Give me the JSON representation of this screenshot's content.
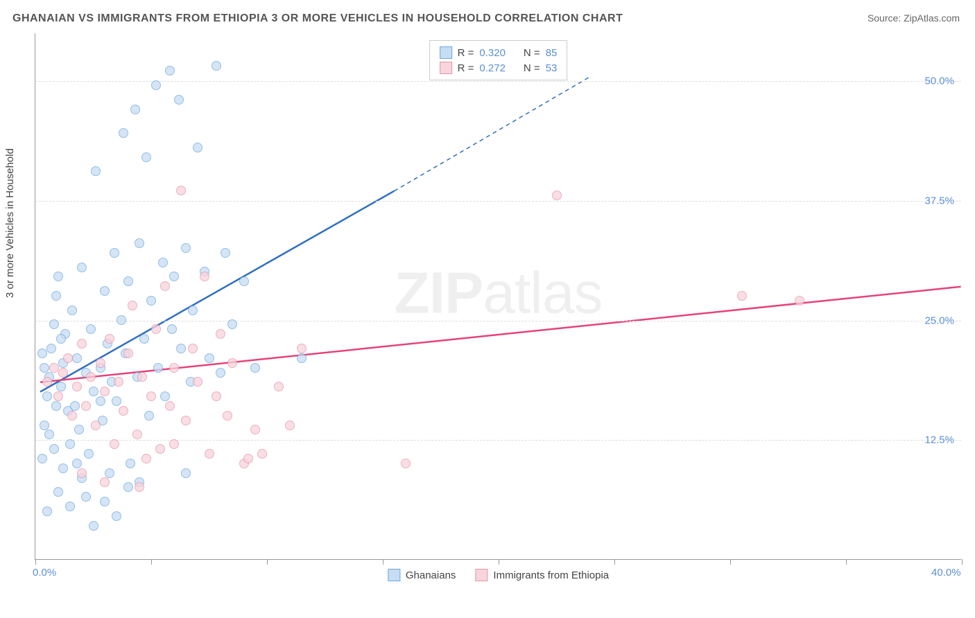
{
  "title": "GHANAIAN VS IMMIGRANTS FROM ETHIOPIA 3 OR MORE VEHICLES IN HOUSEHOLD CORRELATION CHART",
  "source_label": "Source: ZipAtlas.com",
  "ylabel": "3 or more Vehicles in Household",
  "watermark_a": "ZIP",
  "watermark_b": "atlas",
  "chart": {
    "type": "scatter",
    "xlim": [
      0,
      40
    ],
    "ylim": [
      0,
      55
    ],
    "x_tick_positions": [
      0,
      5,
      10,
      15,
      20,
      25,
      30,
      35,
      40
    ],
    "x_tick_labels": {
      "0": "0.0%",
      "40": "40.0%"
    },
    "y_grid_positions": [
      12.5,
      25.0,
      37.5,
      50.0
    ],
    "y_tick_labels": [
      "12.5%",
      "25.0%",
      "37.5%",
      "50.0%"
    ],
    "background_color": "#ffffff",
    "grid_color": "#dddddd",
    "axis_color": "#999999",
    "series": [
      {
        "name": "Ghanaians",
        "marker_fill": "#c7ddf3",
        "marker_stroke": "#6ea8e0",
        "line_color": "#2f6fc0",
        "R": "0.320",
        "N": "85",
        "trend": {
          "x1": 0.2,
          "y1": 17.5,
          "x2_solid": 15.5,
          "y2_solid": 38.5,
          "x2_dash": 24.0,
          "y2_dash": 50.5
        },
        "points": [
          [
            0.3,
            10.5
          ],
          [
            0.4,
            14.0
          ],
          [
            0.5,
            17.0
          ],
          [
            0.6,
            19.0
          ],
          [
            0.7,
            22.0
          ],
          [
            0.8,
            24.5
          ],
          [
            0.9,
            27.5
          ],
          [
            1.0,
            29.5
          ],
          [
            1.1,
            18.0
          ],
          [
            1.2,
            20.5
          ],
          [
            1.3,
            23.5
          ],
          [
            1.4,
            15.5
          ],
          [
            1.5,
            12.0
          ],
          [
            1.6,
            26.0
          ],
          [
            1.7,
            16.0
          ],
          [
            1.8,
            21.0
          ],
          [
            1.9,
            13.5
          ],
          [
            2.0,
            30.5
          ],
          [
            2.2,
            19.5
          ],
          [
            2.3,
            11.0
          ],
          [
            2.4,
            24.0
          ],
          [
            2.5,
            17.5
          ],
          [
            2.6,
            40.5
          ],
          [
            2.8,
            20.0
          ],
          [
            2.9,
            14.5
          ],
          [
            3.0,
            28.0
          ],
          [
            3.1,
            22.5
          ],
          [
            3.3,
            18.5
          ],
          [
            3.4,
            32.0
          ],
          [
            3.5,
            16.5
          ],
          [
            3.7,
            25.0
          ],
          [
            3.8,
            44.5
          ],
          [
            3.9,
            21.5
          ],
          [
            4.0,
            29.0
          ],
          [
            4.1,
            10.0
          ],
          [
            4.3,
            47.0
          ],
          [
            4.4,
            19.0
          ],
          [
            4.5,
            33.0
          ],
          [
            4.7,
            23.0
          ],
          [
            4.8,
            42.0
          ],
          [
            4.9,
            15.0
          ],
          [
            5.0,
            27.0
          ],
          [
            5.2,
            49.5
          ],
          [
            5.3,
            20.0
          ],
          [
            5.5,
            31.0
          ],
          [
            5.6,
            17.0
          ],
          [
            5.8,
            51.0
          ],
          [
            5.9,
            24.0
          ],
          [
            6.0,
            29.5
          ],
          [
            6.2,
            48.0
          ],
          [
            6.3,
            22.0
          ],
          [
            6.5,
            32.5
          ],
          [
            6.7,
            18.5
          ],
          [
            6.8,
            26.0
          ],
          [
            7.0,
            43.0
          ],
          [
            7.3,
            30.0
          ],
          [
            7.5,
            21.0
          ],
          [
            7.8,
            51.5
          ],
          [
            8.0,
            19.5
          ],
          [
            8.2,
            32.0
          ],
          [
            8.5,
            24.5
          ],
          [
            9.0,
            29.0
          ],
          [
            9.5,
            20.0
          ],
          [
            11.5,
            21.0
          ],
          [
            0.5,
            5.0
          ],
          [
            1.0,
            7.0
          ],
          [
            1.5,
            5.5
          ],
          [
            2.0,
            8.5
          ],
          [
            2.5,
            3.5
          ],
          [
            3.0,
            6.0
          ],
          [
            3.5,
            4.5
          ],
          [
            4.0,
            7.5
          ],
          [
            4.5,
            8.0
          ],
          [
            1.2,
            9.5
          ],
          [
            0.8,
            11.5
          ],
          [
            1.8,
            10.0
          ],
          [
            2.2,
            6.5
          ],
          [
            0.4,
            20.0
          ],
          [
            0.6,
            13.0
          ],
          [
            0.9,
            16.0
          ],
          [
            1.1,
            23.0
          ],
          [
            6.5,
            9.0
          ],
          [
            2.8,
            16.5
          ],
          [
            3.2,
            9.0
          ],
          [
            0.3,
            21.5
          ]
        ]
      },
      {
        "name": "Immigrants from Ethiopia",
        "marker_fill": "#f8d4dc",
        "marker_stroke": "#e695aa",
        "line_color": "#e6427a",
        "R": "0.272",
        "N": "53",
        "trend": {
          "x1": 0.2,
          "y1": 18.5,
          "x2_solid": 40.0,
          "y2_solid": 28.5,
          "x2_dash": 40.0,
          "y2_dash": 28.5
        },
        "points": [
          [
            0.5,
            18.5
          ],
          [
            0.8,
            20.0
          ],
          [
            1.0,
            17.0
          ],
          [
            1.2,
            19.5
          ],
          [
            1.4,
            21.0
          ],
          [
            1.6,
            15.0
          ],
          [
            1.8,
            18.0
          ],
          [
            2.0,
            22.5
          ],
          [
            2.2,
            16.0
          ],
          [
            2.4,
            19.0
          ],
          [
            2.6,
            14.0
          ],
          [
            2.8,
            20.5
          ],
          [
            3.0,
            17.5
          ],
          [
            3.2,
            23.0
          ],
          [
            3.4,
            12.0
          ],
          [
            3.6,
            18.5
          ],
          [
            3.8,
            15.5
          ],
          [
            4.0,
            21.5
          ],
          [
            4.2,
            26.5
          ],
          [
            4.4,
            13.0
          ],
          [
            4.6,
            19.0
          ],
          [
            4.8,
            10.5
          ],
          [
            5.0,
            17.0
          ],
          [
            5.2,
            24.0
          ],
          [
            5.4,
            11.5
          ],
          [
            5.6,
            28.5
          ],
          [
            5.8,
            16.0
          ],
          [
            6.0,
            20.0
          ],
          [
            6.3,
            38.5
          ],
          [
            6.5,
            14.5
          ],
          [
            6.8,
            22.0
          ],
          [
            7.0,
            18.5
          ],
          [
            7.3,
            29.5
          ],
          [
            7.5,
            11.0
          ],
          [
            7.8,
            17.0
          ],
          [
            8.0,
            23.5
          ],
          [
            8.3,
            15.0
          ],
          [
            8.5,
            20.5
          ],
          [
            9.0,
            10.0
          ],
          [
            9.2,
            10.5
          ],
          [
            9.5,
            13.5
          ],
          [
            9.8,
            11.0
          ],
          [
            10.5,
            18.0
          ],
          [
            11.0,
            14.0
          ],
          [
            11.5,
            22.0
          ],
          [
            16.0,
            10.0
          ],
          [
            22.5,
            38.0
          ],
          [
            30.5,
            27.5
          ],
          [
            33.0,
            27.0
          ],
          [
            2.0,
            9.0
          ],
          [
            3.0,
            8.0
          ],
          [
            4.5,
            7.5
          ],
          [
            6.0,
            12.0
          ]
        ]
      }
    ]
  },
  "legend": {
    "ghanaians": "Ghanaians",
    "ethiopia": "Immigrants from Ethiopia"
  }
}
